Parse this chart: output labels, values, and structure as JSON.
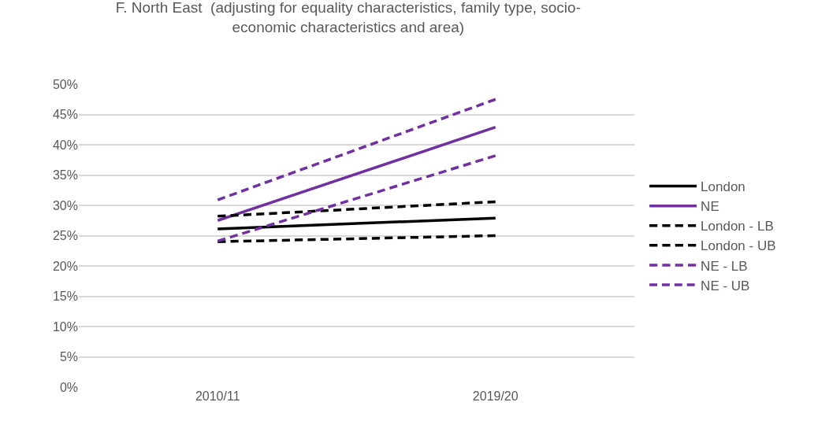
{
  "chart_data": {
    "type": "line",
    "title": "F. North East  (adjusting for equality characteristics, family type, socio-\neconomic characteristics and area)",
    "categories": [
      "2010/11",
      "2019/20"
    ],
    "series": [
      {
        "name": "London",
        "color": "#000000",
        "values": [
          26.1,
          27.9
        ],
        "line_style": "solid"
      },
      {
        "name": "NE",
        "color": "#7030a0",
        "values": [
          27.5,
          42.9
        ],
        "line_style": "solid"
      },
      {
        "name": "London - LB",
        "color": "#000000",
        "values": [
          24.0,
          25.0
        ],
        "line_style": "dashed"
      },
      {
        "name": "London - UB",
        "color": "#000000",
        "values": [
          28.2,
          30.6
        ],
        "line_style": "dashed"
      },
      {
        "name": "NE - LB",
        "color": "#7030a0",
        "values": [
          24.1,
          38.2
        ],
        "line_style": "dashed"
      },
      {
        "name": "NE - UB",
        "color": "#7030a0",
        "values": [
          30.9,
          47.5
        ],
        "line_style": "dashed"
      }
    ],
    "ylim": [
      0,
      50
    ],
    "yticks": [
      {
        "value": 0,
        "label": "0%"
      },
      {
        "value": 5,
        "label": "5%"
      },
      {
        "value": 10,
        "label": "10%"
      },
      {
        "value": 15,
        "label": "15%"
      },
      {
        "value": 20,
        "label": "20%"
      },
      {
        "value": 25,
        "label": "25%"
      },
      {
        "value": 30,
        "label": "30%"
      },
      {
        "value": 35,
        "label": "35%"
      },
      {
        "value": 40,
        "label": "40%"
      },
      {
        "value": 45,
        "label": "45%"
      },
      {
        "value": 50,
        "label": "50%"
      }
    ],
    "grid": "y",
    "legend": "right",
    "marker": "none"
  }
}
